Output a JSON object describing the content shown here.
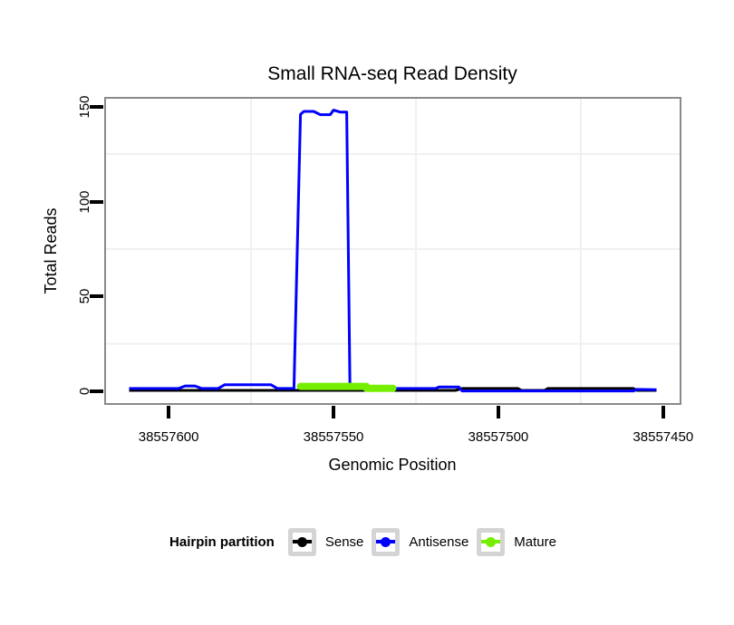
{
  "chart_data": {
    "type": "line",
    "title": "Small RNA-seq Read Density",
    "xlabel": "Genomic Position",
    "ylabel": "Total Reads",
    "x_axis_reversed": true,
    "xlim": [
      38557619,
      38557445
    ],
    "ylim": [
      -6.2,
      154.2
    ],
    "x_ticks": [
      38557600,
      38557550,
      38557500,
      38557450
    ],
    "x_tick_labels": [
      "38557600",
      "38557550",
      "38557500",
      "38557450"
    ],
    "y_ticks": [
      0,
      50,
      100,
      150
    ],
    "y_tick_labels": [
      "0",
      "50",
      "100",
      "150"
    ],
    "grid": {
      "color": "#F0F0F0",
      "x_lines": [
        38557575,
        38557525,
        38557475
      ],
      "y_lines": [
        25,
        75,
        125
      ]
    },
    "series": [
      {
        "name": "Sense",
        "color": "#000000",
        "width": 3,
        "linecap": "butt",
        "points": [
          [
            38557612,
            0.5
          ],
          [
            38557513,
            0.5
          ],
          [
            38557511,
            1.5
          ],
          [
            38557494,
            1.5
          ],
          [
            38557493,
            0.5
          ],
          [
            38557486,
            0.5
          ],
          [
            38557485,
            1.5
          ],
          [
            38557459,
            1.5
          ],
          [
            38557458,
            0.5
          ],
          [
            38557452,
            0.5
          ]
        ]
      },
      {
        "name": "Antisense",
        "color": "#0000FF",
        "width": 3,
        "linecap": "butt",
        "points": [
          [
            38557612,
            1.5
          ],
          [
            38557597,
            1.5
          ],
          [
            38557595,
            2.8
          ],
          [
            38557592,
            2.8
          ],
          [
            38557590,
            1.5
          ],
          [
            38557585,
            1.5
          ],
          [
            38557583,
            3.5
          ],
          [
            38557569,
            3.5
          ],
          [
            38557567,
            1.5
          ],
          [
            38557562,
            1.5
          ],
          [
            38557560,
            146
          ],
          [
            38557559,
            147.5
          ],
          [
            38557556,
            147.5
          ],
          [
            38557554,
            145.8
          ],
          [
            38557551,
            145.8
          ],
          [
            38557550,
            148.2
          ],
          [
            38557548,
            147.2
          ],
          [
            38557546,
            147.2
          ],
          [
            38557545,
            1.5
          ],
          [
            38557519,
            1.5
          ],
          [
            38557518,
            2.3
          ],
          [
            38557512,
            2.3
          ],
          [
            38557511,
            0.2
          ],
          [
            38557486,
            0.2
          ],
          [
            38557459,
            0.2
          ],
          [
            38557458,
            1
          ],
          [
            38557452,
            0.8
          ]
        ]
      },
      {
        "name": "Mature",
        "color": "#76EE00",
        "width": 8,
        "linecap": "round",
        "points": [
          [
            38557560,
            2.6
          ],
          [
            38557540,
            2.6
          ],
          [
            38557540,
            1.6
          ],
          [
            38557532,
            1.6
          ]
        ]
      }
    ],
    "legend": {
      "title": "Hairpin partition",
      "position": "bottom",
      "items": [
        {
          "label": "Sense",
          "color": "#000000"
        },
        {
          "label": "Antisense",
          "color": "#0000FF"
        },
        {
          "label": "Mature",
          "color": "#76EE00"
        }
      ]
    }
  },
  "colors": {
    "background": "#FFFFFF",
    "panel_border": "#8A8A8A",
    "tick": "#000000",
    "grid": "#F0F0F0",
    "legend_box_border": "#D4D4D4",
    "text": "#000000"
  }
}
